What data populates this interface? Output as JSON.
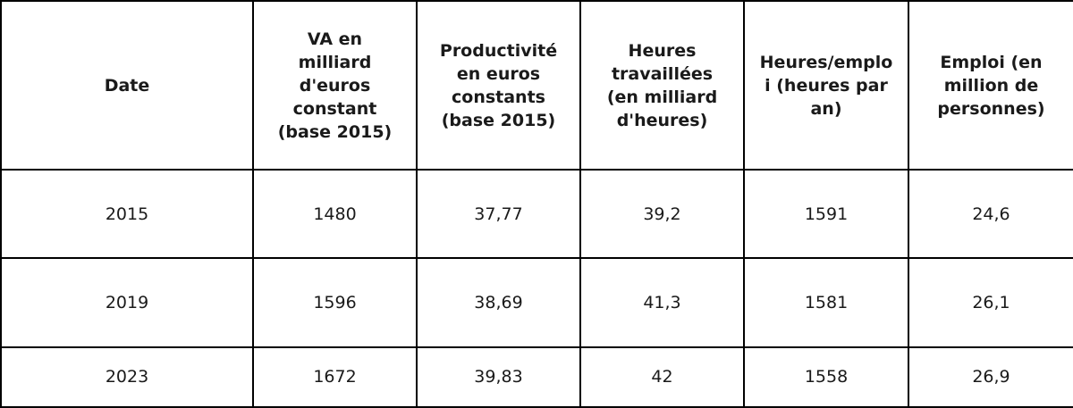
{
  "table": {
    "headers": [
      "Date",
      "VA en milliard d'euros constant (base 2015)",
      "Productivité en euros constants (base 2015)",
      "Heures travaillées (en milliard d'heures)",
      "Heures/emploi (heures par an)",
      "Emploi (en million de personnes)"
    ],
    "rows": [
      [
        "2015",
        "1480",
        "37,77",
        "39,2",
        "1591",
        "24,6"
      ],
      [
        "2019",
        "1596",
        "38,69",
        "41,3",
        "1581",
        "26,1"
      ],
      [
        "2023",
        "1672",
        "39,83",
        "42",
        "1558",
        "26,9"
      ]
    ]
  }
}
